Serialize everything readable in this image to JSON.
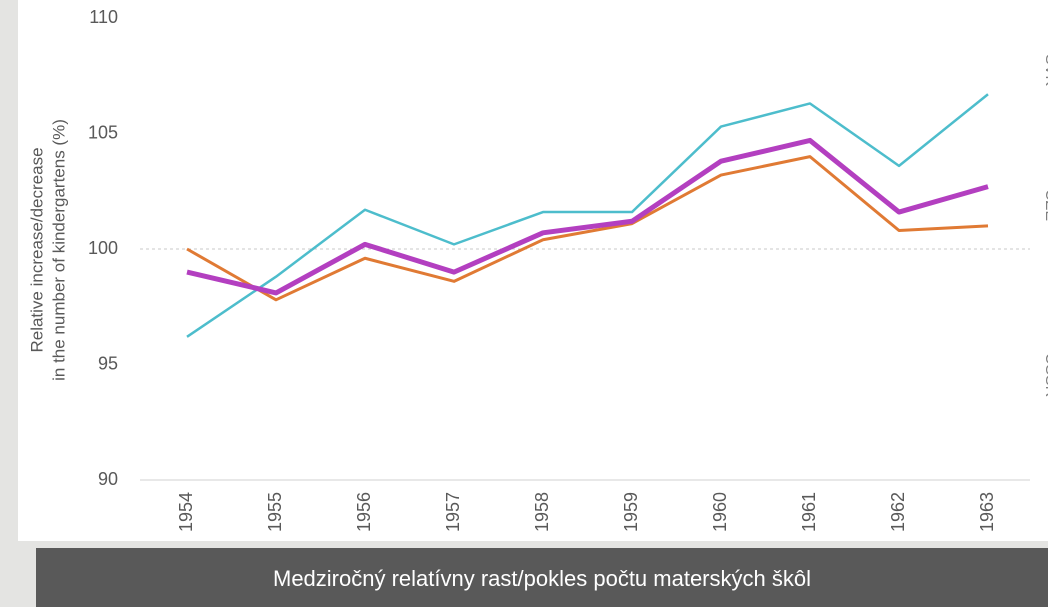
{
  "chart_data": {
    "type": "line",
    "caption": "Medziročný relatívny rast/pokles počtu materských škôl",
    "y_label": [
      "Relative increase/decrease",
      "in the number of kindergartens (%)"
    ],
    "categories": [
      "1954",
      "1955",
      "1956",
      "1957",
      "1958",
      "1959",
      "1960",
      "1961",
      "1962",
      "1963"
    ],
    "series": [
      {
        "name": "SVK",
        "color": "#4dbdcc",
        "width": 2.5,
        "values": [
          96.2,
          98.8,
          101.7,
          100.2,
          101.6,
          101.6,
          105.3,
          106.3,
          103.6,
          106.7
        ]
      },
      {
        "name": "CZE",
        "color": "#e07a34",
        "width": 3,
        "values": [
          100.0,
          97.8,
          99.6,
          98.6,
          100.4,
          101.1,
          103.2,
          104.0,
          100.8,
          101.0
        ]
      },
      {
        "name": "ČSSR",
        "color": "#b33fc0",
        "width": 5,
        "values": [
          99.0,
          98.1,
          100.2,
          99.0,
          100.7,
          101.2,
          103.8,
          104.7,
          101.6,
          102.7
        ]
      }
    ],
    "ylim": [
      90,
      110
    ],
    "yticks": [
      90,
      95,
      100,
      105,
      110
    ],
    "reference_line": 100
  }
}
